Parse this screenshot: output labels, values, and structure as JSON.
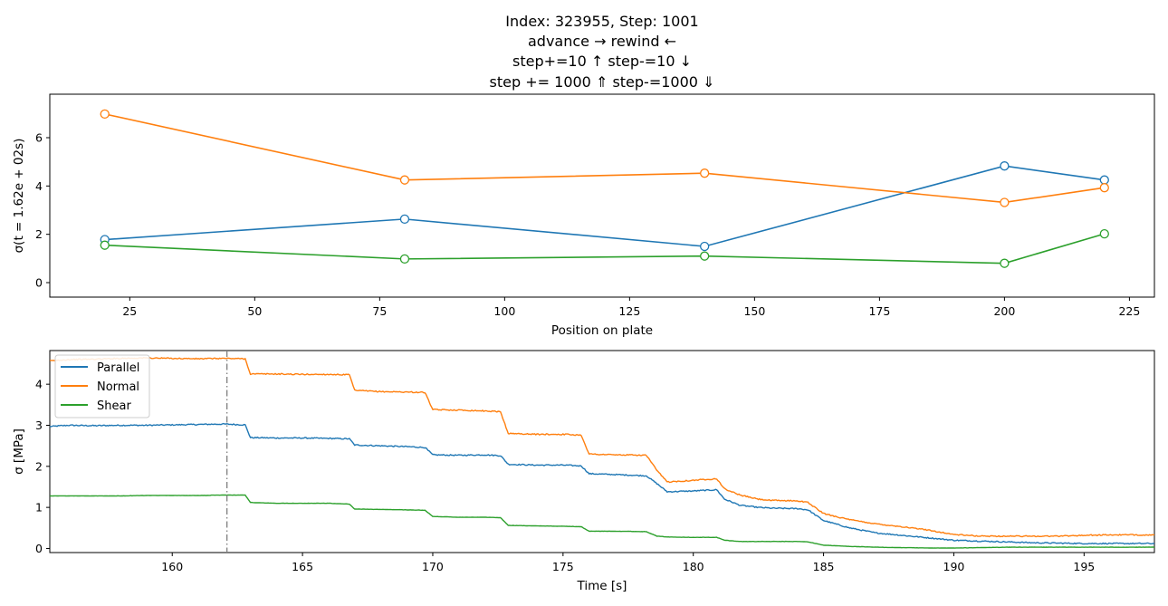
{
  "title_lines": [
    "Index: 323955, Step: 1001",
    "advance  →        rewind  ←",
    "step+=10  ↑           step-=10  ↓",
    "step += 1000  ⇑       step-=1000 ⇓"
  ],
  "colors": {
    "Parallel": "#1f77b4",
    "Normal": "#ff7f0e",
    "Shear": "#2ca02c",
    "marker": "#7f7f7f"
  },
  "chart_data": [
    {
      "type": "line",
      "xlabel": "Position on plate",
      "ylabel": "σ(t = 1.62e + 02s)",
      "xlim": [
        9,
        230
      ],
      "ylim": [
        -0.6,
        7.8
      ],
      "xticks": [
        25,
        50,
        75,
        100,
        125,
        150,
        175,
        200,
        225
      ],
      "yticks": [
        0,
        2,
        4,
        6
      ],
      "grid": false,
      "x": [
        20,
        80,
        140,
        200,
        220
      ],
      "series": [
        {
          "key": "Parallel",
          "values": [
            1.78,
            2.63,
            1.5,
            4.83,
            4.25
          ]
        },
        {
          "key": "Normal",
          "values": [
            6.98,
            4.25,
            4.53,
            3.32,
            3.93
          ]
        },
        {
          "key": "Shear",
          "values": [
            1.55,
            0.98,
            1.1,
            0.8,
            2.02
          ]
        }
      ]
    },
    {
      "type": "line",
      "xlabel": "Time [s]",
      "ylabel": "σ [MPa]",
      "xlim": [
        155.3,
        197.7
      ],
      "ylim": [
        -0.1,
        4.82
      ],
      "xticks": [
        160,
        165,
        170,
        175,
        180,
        185,
        190,
        195
      ],
      "yticks": [
        0,
        1,
        2,
        3,
        4
      ],
      "grid": false,
      "legend_position": "upper-left",
      "marker_line_x": 162.1,
      "x": [
        155.3,
        156,
        157,
        158,
        159,
        160,
        161,
        162,
        162.8,
        163.0,
        164,
        165,
        166,
        166.8,
        167.0,
        168,
        169,
        169.7,
        170.0,
        171,
        172,
        172.6,
        172.9,
        174,
        175,
        175.7,
        176.0,
        177,
        178.2,
        178.6,
        179.0,
        180,
        180.9,
        181.2,
        181.8,
        182.5,
        183,
        184,
        184.4,
        185,
        186,
        187,
        188,
        189,
        190,
        191,
        192,
        193,
        194,
        195,
        196,
        197.7
      ],
      "series": [
        {
          "name": "Parallel",
          "values": [
            2.97,
            3.0,
            2.99,
            3.0,
            3.0,
            3.01,
            3.02,
            3.03,
            3.01,
            2.7,
            2.69,
            2.69,
            2.68,
            2.67,
            2.52,
            2.5,
            2.48,
            2.46,
            2.28,
            2.27,
            2.28,
            2.26,
            2.05,
            2.03,
            2.03,
            2.01,
            1.82,
            1.8,
            1.77,
            1.58,
            1.38,
            1.4,
            1.43,
            1.2,
            1.05,
            1.0,
            0.98,
            0.97,
            0.94,
            0.68,
            0.5,
            0.38,
            0.32,
            0.26,
            0.2,
            0.18,
            0.16,
            0.14,
            0.13,
            0.12,
            0.12,
            0.12
          ]
        },
        {
          "name": "Normal",
          "values": [
            4.57,
            4.6,
            4.61,
            4.63,
            4.64,
            4.63,
            4.62,
            4.63,
            4.62,
            4.25,
            4.25,
            4.24,
            4.24,
            4.23,
            3.85,
            3.82,
            3.81,
            3.8,
            3.38,
            3.37,
            3.35,
            3.33,
            2.8,
            2.78,
            2.78,
            2.76,
            2.3,
            2.28,
            2.27,
            1.9,
            1.62,
            1.66,
            1.7,
            1.45,
            1.3,
            1.2,
            1.17,
            1.16,
            1.12,
            0.85,
            0.7,
            0.6,
            0.53,
            0.45,
            0.34,
            0.3,
            0.3,
            0.3,
            0.3,
            0.32,
            0.33,
            0.33
          ]
        },
        {
          "name": "Shear",
          "values": [
            1.28,
            1.28,
            1.28,
            1.28,
            1.29,
            1.29,
            1.29,
            1.3,
            1.3,
            1.12,
            1.1,
            1.1,
            1.1,
            1.08,
            0.96,
            0.95,
            0.94,
            0.93,
            0.78,
            0.76,
            0.76,
            0.75,
            0.56,
            0.55,
            0.54,
            0.53,
            0.42,
            0.42,
            0.41,
            0.3,
            0.28,
            0.27,
            0.27,
            0.2,
            0.17,
            0.17,
            0.17,
            0.17,
            0.16,
            0.08,
            0.05,
            0.03,
            0.02,
            0.01,
            0.01,
            0.02,
            0.03,
            0.03,
            0.03,
            0.03,
            0.03,
            0.03
          ]
        }
      ]
    }
  ]
}
